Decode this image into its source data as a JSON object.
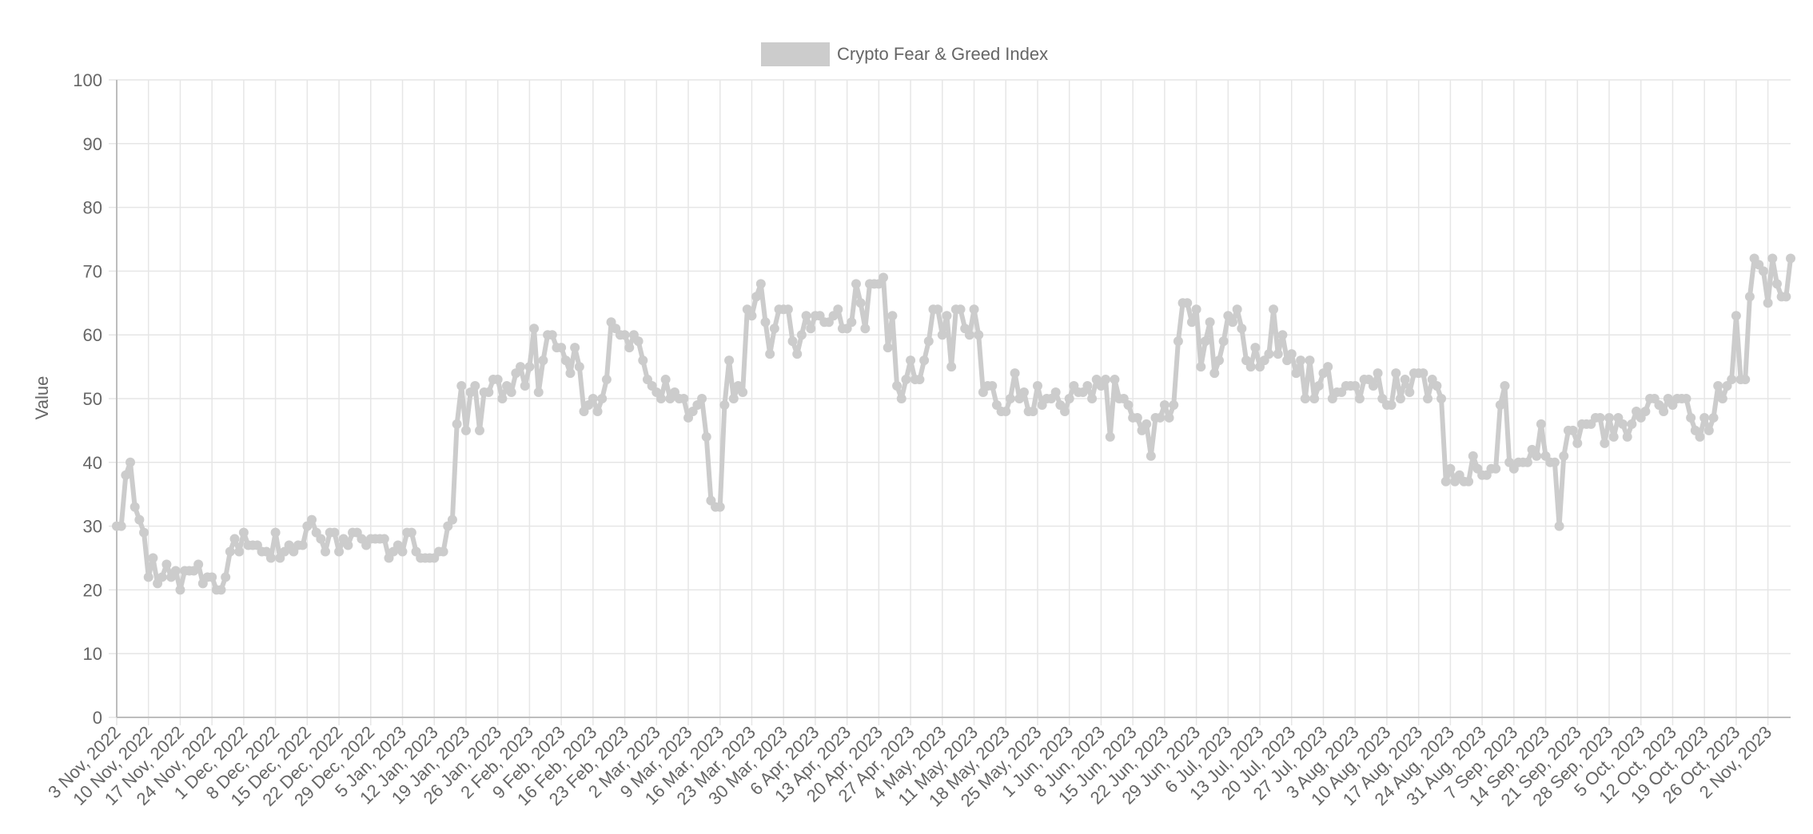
{
  "chart_data": {
    "type": "line",
    "ylabel": "Value",
    "xlabel": "",
    "ylim": [
      0,
      100
    ],
    "y_ticks": [
      0,
      10,
      20,
      30,
      40,
      50,
      60,
      70,
      80,
      90,
      100
    ],
    "grid": true,
    "legend_position": "top-center",
    "x_start": "2022-11-03",
    "x_tick_labels": [
      "3 Nov, 2022",
      "10 Nov, 2022",
      "17 Nov, 2022",
      "24 Nov, 2022",
      "1 Dec, 2022",
      "8 Dec, 2022",
      "15 Dec, 2022",
      "22 Dec, 2022",
      "29 Dec, 2022",
      "5 Jan, 2023",
      "12 Jan, 2023",
      "19 Jan, 2023",
      "26 Jan, 2023",
      "2 Feb, 2023",
      "9 Feb, 2023",
      "16 Feb, 2023",
      "23 Feb, 2023",
      "2 Mar, 2023",
      "9 Mar, 2023",
      "16 Mar, 2023",
      "23 Mar, 2023",
      "30 Mar, 2023",
      "6 Apr, 2023",
      "13 Apr, 2023",
      "20 Apr, 2023",
      "27 Apr, 2023",
      "4 May, 2023",
      "11 May, 2023",
      "18 May, 2023",
      "25 May, 2023",
      "1 Jun, 2023",
      "8 Jun, 2023",
      "15 Jun, 2023",
      "22 Jun, 2023",
      "29 Jun, 2023",
      "6 Jul, 2023",
      "13 Jul, 2023",
      "20 Jul, 2023",
      "27 Jul, 2023",
      "3 Aug, 2023",
      "10 Aug, 2023",
      "17 Aug, 2023",
      "24 Aug, 2023",
      "31 Aug, 2023",
      "7 Sep, 2023",
      "14 Sep, 2023",
      "21 Sep, 2023",
      "28 Sep, 2023",
      "5 Oct, 2023",
      "12 Oct, 2023",
      "19 Oct, 2023",
      "26 Oct, 2023",
      "2 Nov, 2023"
    ],
    "series": [
      {
        "name": "Crypto Fear & Greed Index",
        "color": "#cccccc",
        "values": [
          30,
          30,
          38,
          40,
          33,
          31,
          29,
          22,
          25,
          21,
          22,
          24,
          22,
          23,
          20,
          23,
          23,
          23,
          24,
          21,
          22,
          22,
          20,
          20,
          22,
          26,
          28,
          26,
          29,
          27,
          27,
          27,
          26,
          26,
          25,
          29,
          25,
          26,
          27,
          26,
          27,
          27,
          30,
          31,
          29,
          28,
          26,
          29,
          29,
          26,
          28,
          27,
          29,
          29,
          28,
          27,
          28,
          28,
          28,
          28,
          25,
          26,
          27,
          26,
          29,
          29,
          26,
          25,
          25,
          25,
          25,
          26,
          26,
          30,
          31,
          46,
          52,
          45,
          51,
          52,
          45,
          51,
          51,
          53,
          53,
          50,
          52,
          51,
          54,
          55,
          52,
          55,
          61,
          51,
          56,
          60,
          60,
          58,
          58,
          56,
          54,
          58,
          55,
          48,
          49,
          50,
          48,
          50,
          53,
          62,
          61,
          60,
          60,
          58,
          60,
          59,
          56,
          53,
          52,
          51,
          50,
          53,
          50,
          51,
          50,
          50,
          47,
          48,
          49,
          50,
          44,
          34,
          33,
          33,
          49,
          56,
          50,
          52,
          51,
          64,
          63,
          66,
          68,
          62,
          57,
          61,
          64,
          64,
          64,
          59,
          57,
          60,
          63,
          61,
          63,
          63,
          62,
          62,
          63,
          64,
          61,
          61,
          62,
          68,
          65,
          61,
          68,
          68,
          68,
          69,
          58,
          63,
          52,
          50,
          53,
          56,
          53,
          53,
          56,
          59,
          64,
          64,
          60,
          63,
          55,
          64,
          64,
          61,
          60,
          64,
          60,
          51,
          52,
          52,
          49,
          48,
          48,
          50,
          54,
          50,
          51,
          48,
          48,
          52,
          49,
          50,
          50,
          51,
          49,
          48,
          50,
          52,
          51,
          51,
          52,
          50,
          53,
          52,
          53,
          44,
          53,
          50,
          50,
          49,
          47,
          47,
          45,
          46,
          41,
          47,
          47,
          49,
          47,
          49,
          59,
          65,
          65,
          62,
          64,
          55,
          59,
          62,
          54,
          56,
          59,
          63,
          62,
          64,
          61,
          56,
          55,
          58,
          55,
          56,
          57,
          64,
          57,
          60,
          56,
          57,
          54,
          56,
          50,
          56,
          50,
          52,
          54,
          55,
          50,
          51,
          51,
          52,
          52,
          52,
          50,
          53,
          53,
          52,
          54,
          50,
          49,
          49,
          54,
          50,
          53,
          51,
          54,
          54,
          54,
          50,
          53,
          52,
          50,
          37,
          39,
          37,
          38,
          37,
          37,
          41,
          39,
          38,
          38,
          39,
          39,
          49,
          52,
          40,
          39,
          40,
          40,
          40,
          42,
          41,
          46,
          41,
          40,
          40,
          30,
          41,
          45,
          45,
          43,
          46,
          46,
          46,
          47,
          47,
          43,
          47,
          44,
          47,
          46,
          44,
          46,
          48,
          47,
          48,
          50,
          50,
          49,
          48,
          50,
          49,
          50,
          50,
          50,
          47,
          45,
          44,
          47,
          45,
          47,
          52,
          50,
          52,
          53,
          63,
          53,
          53,
          66,
          72,
          71,
          70,
          65,
          72,
          68,
          66,
          66,
          72
        ]
      }
    ]
  }
}
